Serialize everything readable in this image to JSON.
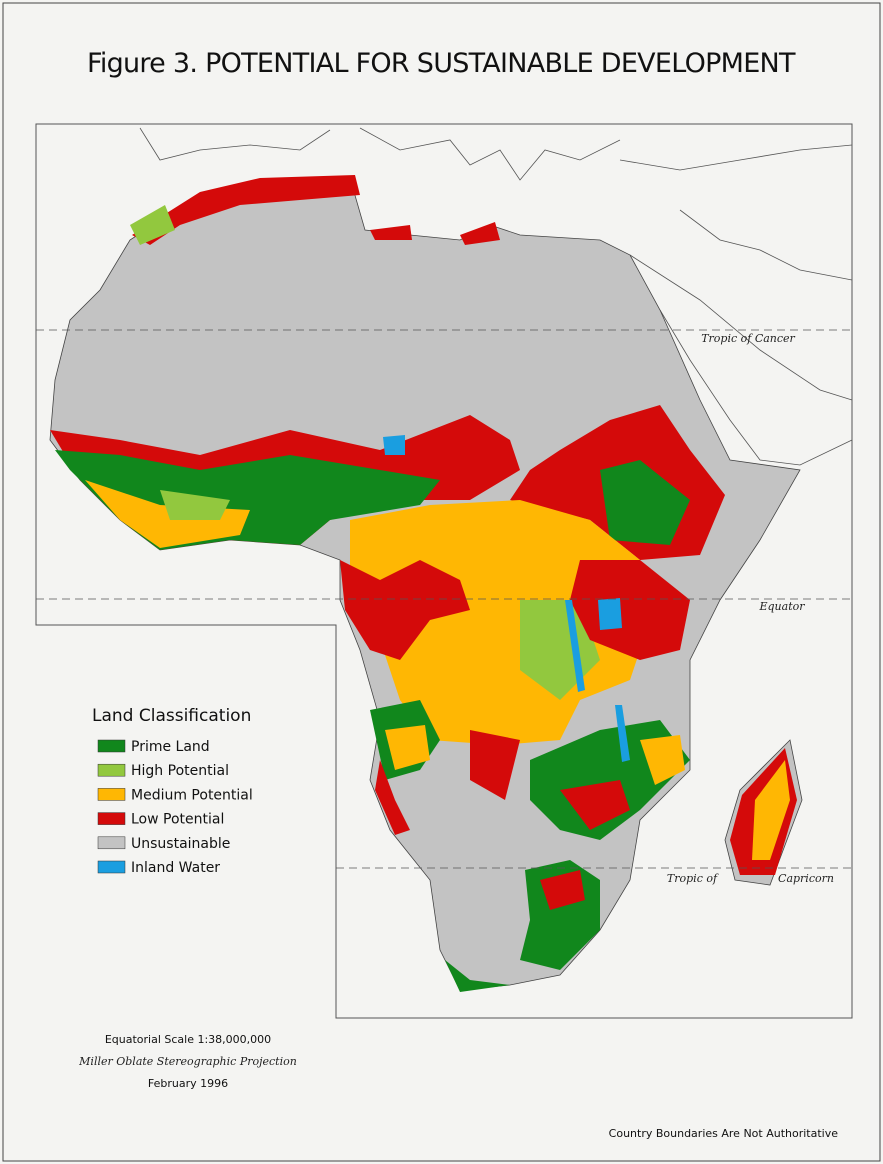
{
  "title": "Figure 3. POTENTIAL FOR SUSTAINABLE DEVELOPMENT",
  "legend": {
    "title": "Land Classification",
    "items": [
      {
        "label": "Prime Land",
        "color": "#11871c"
      },
      {
        "label": "High Potential",
        "color": "#92c83e"
      },
      {
        "label": "Medium Potential",
        "color": "#ffb703"
      },
      {
        "label": "Low Potential",
        "color": "#d40a0a"
      },
      {
        "label": "Unsustainable",
        "color": "#c3c3c3"
      },
      {
        "label": "Inland Water",
        "color": "#1a9ee0"
      }
    ]
  },
  "map_labels": {
    "tropic_of_cancer": "Tropic of Cancer",
    "equator": "Equator",
    "tropic_of_capricorn": [
      "Tropic of",
      "Capricorn"
    ]
  },
  "scale_block": {
    "scale": "Equatorial Scale 1:38,000,000",
    "projection": "Miller Oblate Stereographic Projection",
    "date": "February 1996"
  },
  "footer": "Country Boundaries Are Not Authoritative"
}
